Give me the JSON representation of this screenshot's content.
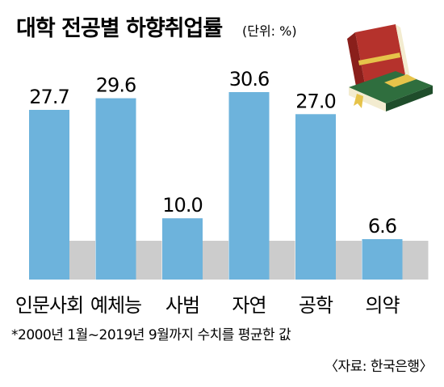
{
  "chart_data": {
    "type": "bar",
    "title": "대학 전공별 하향취업률",
    "unit": "(단위: %)",
    "categories": [
      "인문사회",
      "예체능",
      "사범",
      "자연",
      "공학",
      "의약"
    ],
    "values": [
      27.7,
      29.6,
      10.0,
      30.6,
      27.0,
      6.6
    ],
    "value_labels": [
      "27.7",
      "29.6",
      "10.0",
      "30.6",
      "27.0",
      "6.6"
    ],
    "ylim": [
      0,
      33
    ],
    "grid": false,
    "legend": "none",
    "note": "*2000년 1월~2019년 9월까지 수치를 평균한 값",
    "source": "〈자료: 한국은행〉"
  },
  "colors": {
    "bar": "#6db3dc",
    "bar_shadow": "#cccccc",
    "book_red": "#b5322c",
    "book_green": "#2f6e3e",
    "book_pages": "#f3ecd0"
  },
  "icon": "book-stack-icon"
}
